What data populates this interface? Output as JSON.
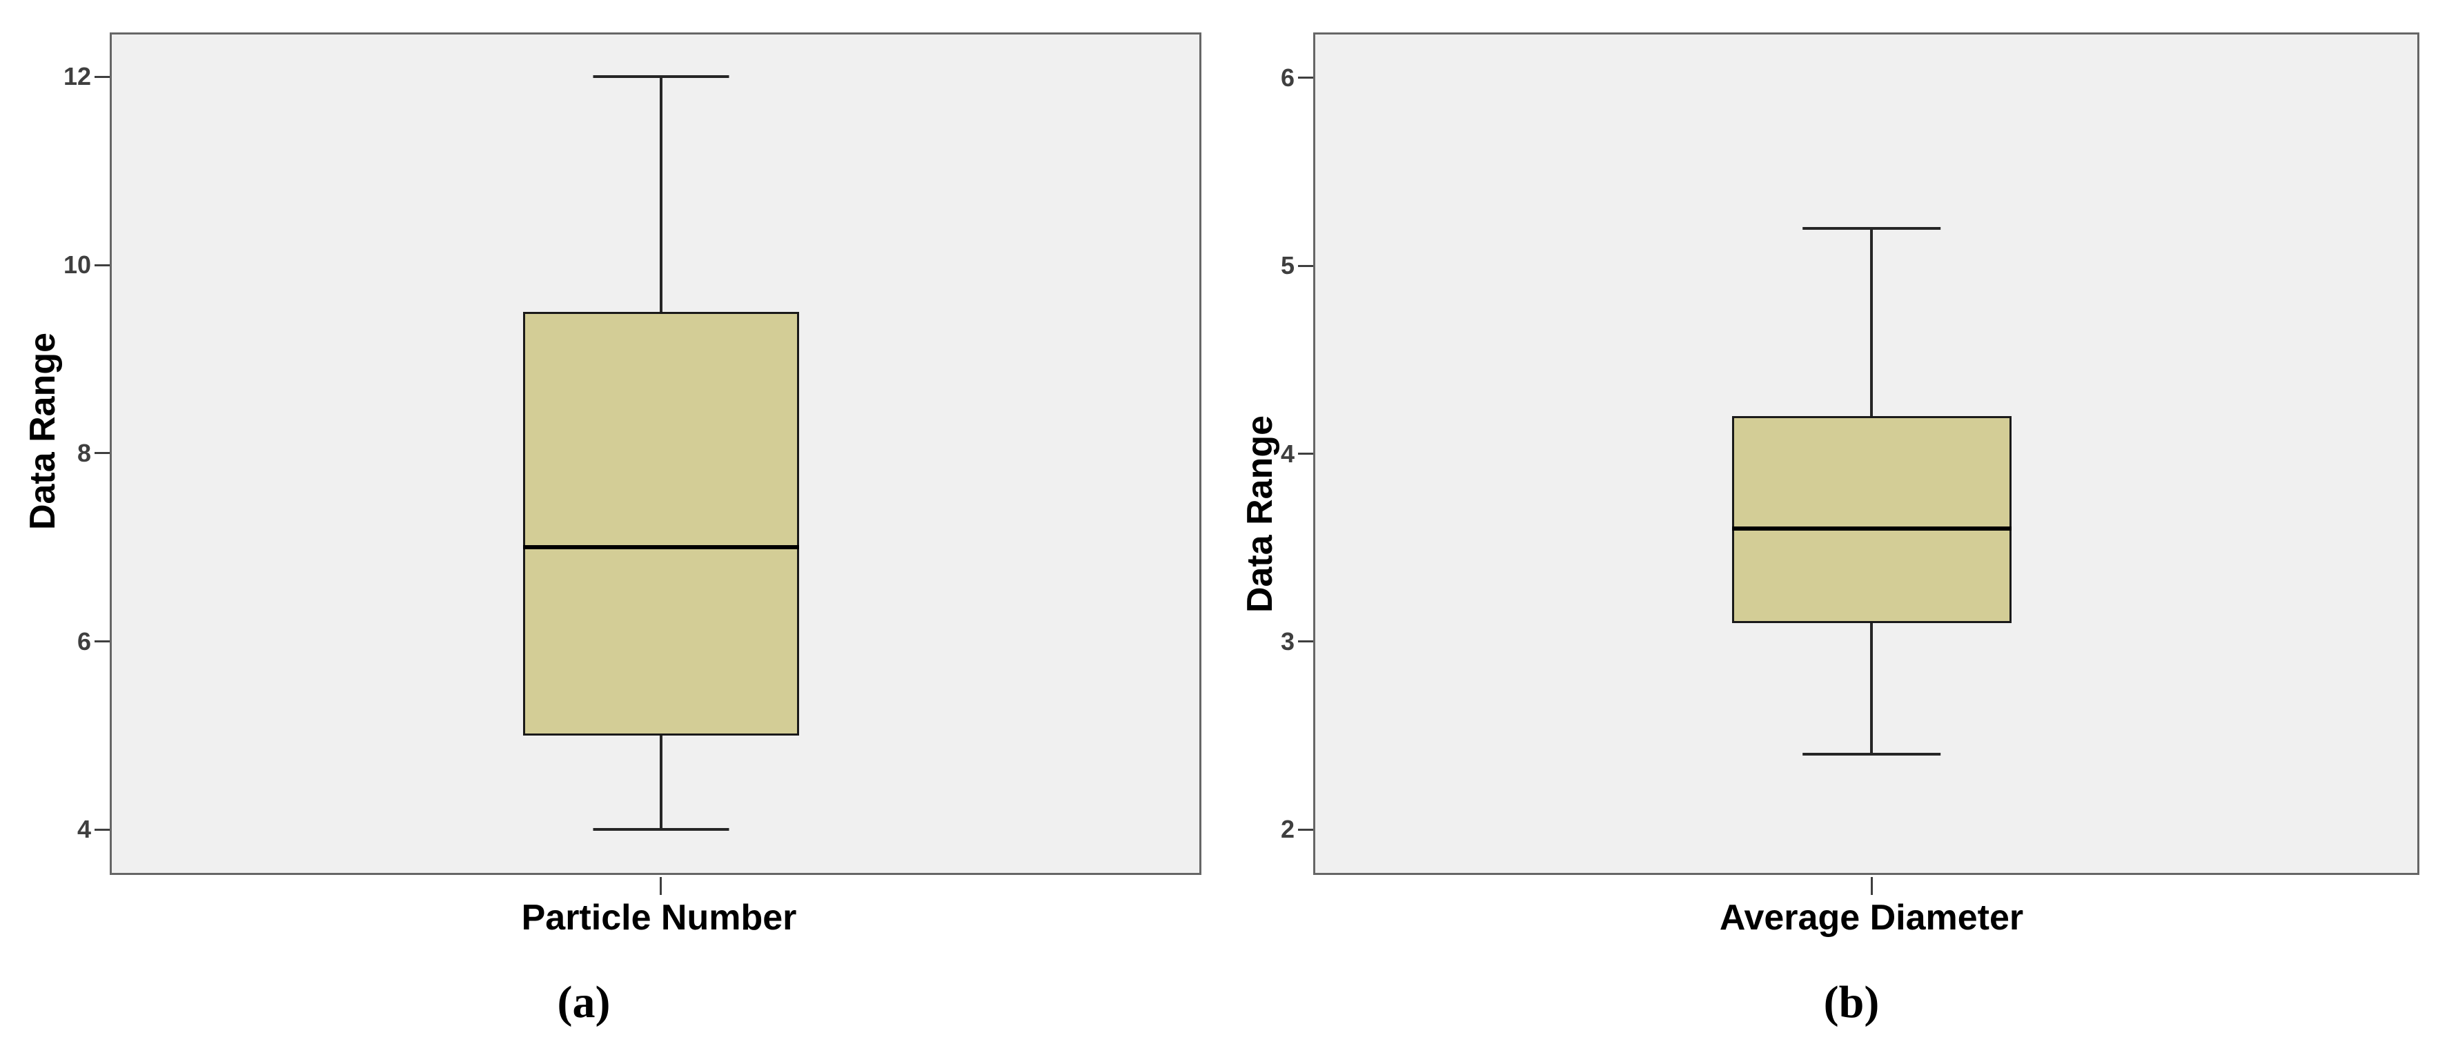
{
  "colors": {
    "box_fill": "#d3cd96",
    "box_border": "#1a1a1a",
    "median_line": "#000000",
    "whisker": "#262626",
    "plot_background": "#f0f0f0",
    "frame_border": "#666666",
    "tick_text": "#3f3f3f",
    "label_text": "#000000"
  },
  "chart_data": [
    {
      "type": "boxplot",
      "panel_caption": "(a)",
      "title": "",
      "ylabel": "Data Range",
      "xlabel": "",
      "categories": [
        "Particle Number"
      ],
      "yticks": [
        12,
        10,
        8,
        6,
        4
      ],
      "ylim": [
        3.54,
        12.45
      ],
      "grid": false,
      "legend": false,
      "series": [
        {
          "name": "Particle Number",
          "min": 4,
          "q1": 5,
          "median": 7,
          "q3": 9.5,
          "max": 12
        }
      ]
    },
    {
      "type": "boxplot",
      "panel_caption": "(b)",
      "title": "",
      "ylabel": "Data Range",
      "xlabel": "",
      "categories": [
        "Average Diameter"
      ],
      "yticks": [
        6,
        5,
        4,
        3,
        2
      ],
      "ylim": [
        1.77,
        6.23
      ],
      "grid": false,
      "legend": false,
      "series": [
        {
          "name": "Average Diameter",
          "min": 2.4,
          "q1": 3.1,
          "median": 3.6,
          "q3": 4.2,
          "max": 5.2
        }
      ]
    }
  ]
}
